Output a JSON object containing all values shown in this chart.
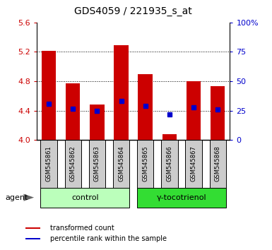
{
  "title": "GDS4059 / 221935_s_at",
  "samples": [
    "GSM545861",
    "GSM545862",
    "GSM545863",
    "GSM545864",
    "GSM545865",
    "GSM545866",
    "GSM545867",
    "GSM545868"
  ],
  "bar_values": [
    5.21,
    4.77,
    4.48,
    5.29,
    4.9,
    4.08,
    4.8,
    4.73
  ],
  "blue_dot_values": [
    4.49,
    4.43,
    4.4,
    4.53,
    4.46,
    4.35,
    4.44,
    4.42
  ],
  "ymin": 4.0,
  "ymax": 5.6,
  "yticks_left": [
    4.0,
    4.4,
    4.8,
    5.2,
    5.6
  ],
  "yticks_right": [
    0,
    25,
    50,
    75,
    100
  ],
  "ytick_labels_right": [
    "0",
    "25",
    "50",
    "75",
    "100%"
  ],
  "bar_color": "#cc0000",
  "dot_color": "#0000cc",
  "bar_width": 0.6,
  "groups": [
    {
      "label": "control",
      "indices": [
        0,
        1,
        2,
        3
      ],
      "color": "#bbffbb"
    },
    {
      "label": "γ-tocotrienol",
      "indices": [
        4,
        5,
        6,
        7
      ],
      "color": "#33dd33"
    }
  ],
  "agent_label": "agent",
  "legend_items": [
    {
      "color": "#cc0000",
      "label": "transformed count"
    },
    {
      "color": "#0000cc",
      "label": "percentile rank within the sample"
    }
  ],
  "grid_color": "#000000",
  "bg_color": "#ffffff",
  "plot_bg": "#ffffff",
  "tick_color_left": "#cc0000",
  "tick_color_right": "#0000cc",
  "title_fontsize": 10,
  "tick_fontsize": 8,
  "sample_label_fontsize": 6,
  "group_label_fontsize": 8,
  "legend_fontsize": 7,
  "agent_fontsize": 8
}
